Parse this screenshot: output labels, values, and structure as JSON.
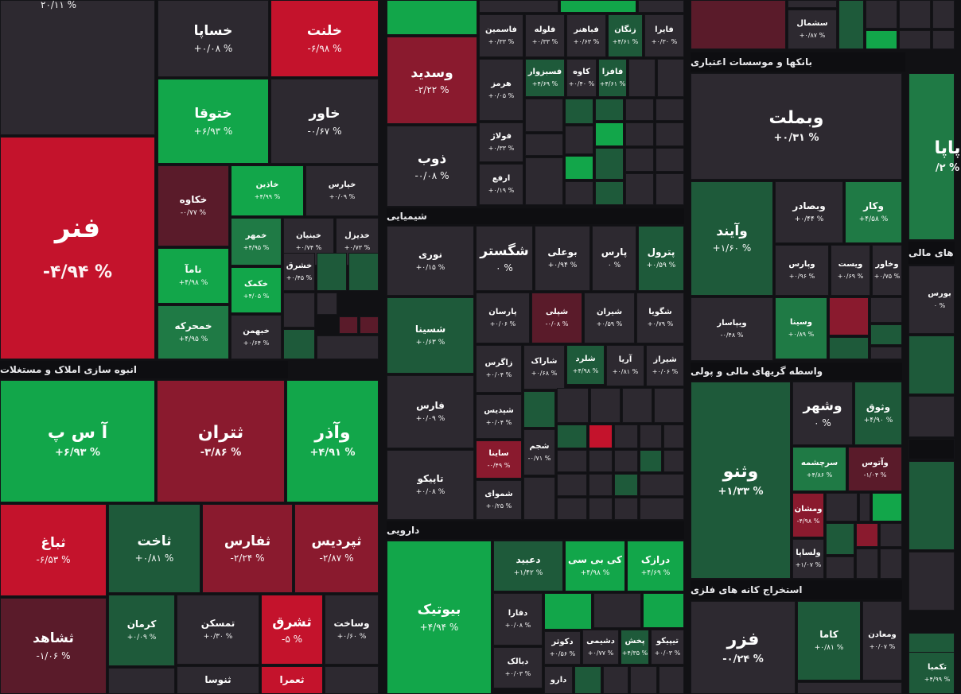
{
  "colors": {
    "G": "#12a64a",
    "g": "#1f7a45",
    "d": "#1e5a3a",
    "k": "#2d2930",
    "r": "#c4132c",
    "m": "#8a1a2e",
    "w": "#5a1b2a"
  },
  "sectors": [
    {
      "id": "s-realestate",
      "title": "انبوه سازی املاک و مستغلات"
    },
    {
      "id": "s-chem",
      "title": "شیمیایی"
    },
    {
      "id": "s-pharma",
      "title": "دارویی"
    },
    {
      "id": "s-banks",
      "title": "بانکها و موسسات اعتباری"
    },
    {
      "id": "s-brokers",
      "title": "واسطه گریهای مالی و پولی"
    },
    {
      "id": "s-mining",
      "title": "استخراج کانه های فلزی"
    },
    {
      "id": "s-finance",
      "title": "های مالی"
    }
  ],
  "tiles": [
    {
      "n": "",
      "p": "% ۲۰/۱۱",
      "c": "k"
    },
    {
      "n": "خساپا",
      "p": "% ۰/۰۸+",
      "c": "k"
    },
    {
      "n": "خلنت",
      "p": "% ۶/۹۸-",
      "c": "r"
    },
    {
      "n": "ختوقا",
      "p": "% ۶/۹۳+",
      "c": "G"
    },
    {
      "n": "خاور",
      "p": "% ۰/۶۷-",
      "c": "k"
    },
    {
      "n": "خکاوه",
      "p": "% ۰/۷۷-",
      "c": "w"
    },
    {
      "n": "خاذین",
      "p": "% ۴/۹۹+",
      "c": "G"
    },
    {
      "n": "خپارس",
      "p": "% ۰/۰۹+",
      "c": "k"
    },
    {
      "n": "خمهر",
      "p": "% ۴/۹۵+",
      "c": "g"
    },
    {
      "n": "خبنیان",
      "p": "% ۰/۷۴+",
      "c": "k"
    },
    {
      "n": "خدیزل",
      "p": "% ۰/۷۳+",
      "c": "k"
    },
    {
      "n": "فنر",
      "p": "% ۴/۹۴-",
      "c": "r"
    },
    {
      "n": "نامآ",
      "p": "% ۴/۹۸+",
      "c": "G"
    },
    {
      "n": "خکمک",
      "p": "% ۴/۰۵+",
      "c": "G"
    },
    {
      "n": "خشرق",
      "p": "% ۰/۴۵+",
      "c": "k"
    },
    {
      "n": "خمحرکه",
      "p": "% ۴/۹۵+",
      "c": "g"
    },
    {
      "n": "خبهمن",
      "p": "% ۰/۶۴+",
      "c": "k"
    },
    {
      "n": "آ س پ",
      "p": "% ۶/۹۳+",
      "c": "G"
    },
    {
      "n": "ثتران",
      "p": "% ۳/۸۶-",
      "c": "m"
    },
    {
      "n": "وآذر",
      "p": "% ۴/۹۱+",
      "c": "G"
    },
    {
      "n": "ثباغ",
      "p": "% ۶/۵۳-",
      "c": "r"
    },
    {
      "n": "ثاخت",
      "p": "% ۰/۸۱+",
      "c": "d"
    },
    {
      "n": "ثفارس",
      "p": "% ۲/۲۴-",
      "c": "m"
    },
    {
      "n": "ثپردیس",
      "p": "% ۲/۸۷-",
      "c": "m"
    },
    {
      "n": "ثشاهد",
      "p": "% ۱/۰۶-",
      "c": "w"
    },
    {
      "n": "کرمان",
      "p": "% ۰/۰۹+",
      "c": "d"
    },
    {
      "n": "تمسکن",
      "p": "% ۰/۳۰+",
      "c": "k"
    },
    {
      "n": "ثشرق",
      "p": "% ۵-",
      "c": "r"
    },
    {
      "n": "وساخت",
      "p": "% ۰/۶۰+",
      "c": "k"
    },
    {
      "n": "ثنوسا",
      "p": "",
      "c": "k"
    },
    {
      "n": "ثعمرا",
      "p": "",
      "c": "r"
    },
    {
      "n": "وسدید",
      "p": "% ۲/۲۲-",
      "c": "m"
    },
    {
      "n": "فاسمین",
      "p": "% ۰/۳۳+",
      "c": "k"
    },
    {
      "n": "فلوله",
      "p": "% ۰/۳۳+",
      "c": "k"
    },
    {
      "n": "فباهنر",
      "p": "% ۰/۶۳+",
      "c": "k"
    },
    {
      "n": "زنگان",
      "p": "% ۴/۶۱+",
      "c": "d"
    },
    {
      "n": "فایرا",
      "p": "% ۰/۳۰+",
      "c": "k"
    },
    {
      "n": "فسبزوار",
      "p": "% ۴/۶۹+",
      "c": "d"
    },
    {
      "n": "کاوه",
      "p": "% ۰/۴۰+",
      "c": "k"
    },
    {
      "n": "فافزا",
      "p": "% ۴/۶۱+",
      "c": "d"
    },
    {
      "n": "هرمز",
      "p": "% ۰/۰۵+",
      "c": "k"
    },
    {
      "n": "فولاژ",
      "p": "% ۰/۳۳+",
      "c": "k"
    },
    {
      "n": "ذوب",
      "p": "% ۰/۰۸-",
      "c": "k"
    },
    {
      "n": "ارفع",
      "p": "% ۰/۱۹+",
      "c": "k"
    },
    {
      "n": "نوری",
      "p": "% ۰/۱۵+",
      "c": "k"
    },
    {
      "n": "شگستر",
      "p": "% ۰",
      "c": "k"
    },
    {
      "n": "بوعلی",
      "p": "% ۰/۹۴+",
      "c": "k"
    },
    {
      "n": "پارس",
      "p": "% ۰",
      "c": "k"
    },
    {
      "n": "پترول",
      "p": "% ۰/۵۹+",
      "c": "d"
    },
    {
      "n": "شسینا",
      "p": "% ۰/۶۳+",
      "c": "d"
    },
    {
      "n": "پارسان",
      "p": "% ۰/۰۶+",
      "c": "k"
    },
    {
      "n": "شپلی",
      "p": "% ۰/۰۸-",
      "c": "w"
    },
    {
      "n": "شیران",
      "p": "% ۰/۵۹+",
      "c": "k"
    },
    {
      "n": "شگویا",
      "p": "% ۰/۷۹+",
      "c": "k"
    },
    {
      "n": "زاگرس",
      "p": "% ۰/۰۴+",
      "c": "k"
    },
    {
      "n": "شاراک",
      "p": "% ۰/۶۸+",
      "c": "k"
    },
    {
      "n": "شلرد",
      "p": "% ۴/۹۸+",
      "c": "d"
    },
    {
      "n": "آریا",
      "p": "% ۰/۸۱+",
      "c": "k"
    },
    {
      "n": "شیراز",
      "p": "% ۰/۰۶+",
      "c": "k"
    },
    {
      "n": "فارس",
      "p": "% ۰/۰۹+",
      "c": "k"
    },
    {
      "n": "شپدیس",
      "p": "% ۰/۰۴+",
      "c": "k"
    },
    {
      "n": "ساینا",
      "p": "% ۰/۴۹-",
      "c": "m"
    },
    {
      "n": "شجم",
      "p": "% ۰/۷۱-",
      "c": "k"
    },
    {
      "n": "تاپیکو",
      "p": "% ۰/۰۸+",
      "c": "k"
    },
    {
      "n": "شموای",
      "p": "% ۰/۲۵+",
      "c": "k"
    },
    {
      "n": "بیوتیک",
      "p": "% ۴/۹۴+",
      "c": "G"
    },
    {
      "n": "دعبید",
      "p": "% ۱/۴۲+",
      "c": "d"
    },
    {
      "n": "کی بی سی",
      "p": "% ۴/۹۸+",
      "c": "G"
    },
    {
      "n": "درازک",
      "p": "% ۴/۶۹+",
      "c": "G"
    },
    {
      "n": "دفارا",
      "p": "% ۰/۰۸+",
      "c": "k"
    },
    {
      "n": "دکوثر",
      "p": "% ۰/۵۶+",
      "c": "k"
    },
    {
      "n": "دشیمی",
      "p": "% ۰/۷۷+",
      "c": "k"
    },
    {
      "n": "پخش",
      "p": "% ۴/۳۵+",
      "c": "d"
    },
    {
      "n": "تیپیکو",
      "p": "% ۰/۰۳+",
      "c": "k"
    },
    {
      "n": "دبالک",
      "p": "% ۰/۰۳+",
      "c": "k"
    },
    {
      "n": "دارو",
      "p": "",
      "c": "k"
    },
    {
      "n": "سشمال",
      "p": "% ۰/۸۷+",
      "c": "k"
    },
    {
      "n": "وبملت",
      "p": "% ۰/۳۱+",
      "c": "k"
    },
    {
      "n": "پاپا",
      "p": "% ۲/",
      "c": "d"
    },
    {
      "n": "وآیند",
      "p": "% ۱/۶۰+",
      "c": "d"
    },
    {
      "n": "وبصادر",
      "p": "% ۰/۴۴+",
      "c": "k"
    },
    {
      "n": "وکار",
      "p": "% ۴/۵۸+",
      "c": "g"
    },
    {
      "n": "وپارس",
      "p": "% ۰/۹۶+",
      "c": "k"
    },
    {
      "n": "ویست",
      "p": "% ۰/۶۹+",
      "c": "k"
    },
    {
      "n": "وخاور",
      "p": "% ۰/۷۵+",
      "c": "k"
    },
    {
      "n": "بورس",
      "p": "% ۰",
      "c": "k"
    },
    {
      "n": "ویپاسار",
      "p": "% ۰/۴۸-",
      "c": "k"
    },
    {
      "n": "وسینا",
      "p": "% ۰/۸۹+",
      "c": "g"
    },
    {
      "n": "وثنو",
      "p": "% ۱/۳۳+",
      "c": "d"
    },
    {
      "n": "وشهر",
      "p": "% ۰",
      "c": "k"
    },
    {
      "n": "وثوق",
      "p": "% ۴/۹۰+",
      "c": "d"
    },
    {
      "n": "سرچشمه",
      "p": "% ۴/۸۶+",
      "c": "g"
    },
    {
      "n": "وآتوس",
      "p": "% ۱/۰۴-",
      "c": "w"
    },
    {
      "n": "ومشان",
      "p": "% ۴/۹۸-",
      "c": "m"
    },
    {
      "n": "ولساپا",
      "p": "% ۱/۰۷+",
      "c": "k"
    },
    {
      "n": "فزر",
      "p": "% ۰/۲۴-",
      "c": "k"
    },
    {
      "n": "کاما",
      "p": "% ۰/۸۱+",
      "c": "d"
    },
    {
      "n": "ومعادن",
      "p": "% ۰/۰۷+",
      "c": "k"
    },
    {
      "n": "تکمبا",
      "p": "% ۴/۹۹+",
      "c": "d"
    }
  ]
}
